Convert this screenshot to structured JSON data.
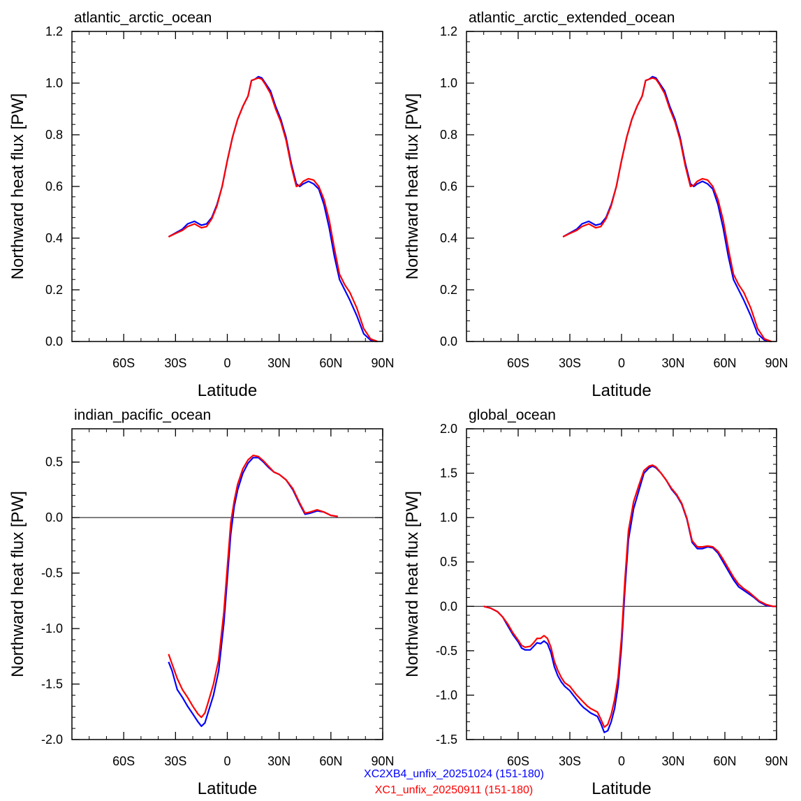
{
  "colors": {
    "series_a": "#0000ff",
    "series_b": "#ff0000",
    "axis": "#000000"
  },
  "legend": [
    {
      "label": "XC2XB4_unfix_20251024 (151-180)",
      "color": "#0000ff"
    },
    {
      "label": "XC1_unfix_20250911 (151-180)",
      "color": "#ff0000"
    }
  ],
  "chart_data": [
    {
      "type": "line",
      "title": "atlantic_arctic_ocean",
      "xlabel": "Latitude",
      "ylabel": "Northward heat flux [PW]",
      "xlim": [
        -90,
        90
      ],
      "ylim": [
        0,
        1.2
      ],
      "x_ticks": [
        -60,
        -30,
        0,
        30,
        60,
        90
      ],
      "x_tick_labels": [
        "60S",
        "30S",
        "0",
        "30N",
        "60N",
        "90N"
      ],
      "y_ticks": [
        0,
        0.2,
        0.4,
        0.6,
        0.8,
        1.0,
        1.2
      ],
      "y_tick_labels": [
        "0.0",
        "0.2",
        "0.4",
        "0.6",
        "0.8",
        "1.0",
        "1.2"
      ],
      "zero_line": false,
      "series": [
        {
          "color": "#0000ff",
          "x": [
            -34,
            -30,
            -26,
            -23,
            -19,
            -15,
            -12,
            -9,
            -6,
            -3,
            0,
            3,
            6,
            9,
            12,
            14,
            16,
            18,
            20,
            22,
            25,
            28,
            31,
            34,
            37,
            40,
            42,
            44,
            47,
            50,
            53,
            56,
            59,
            62,
            65,
            68,
            71,
            75,
            79,
            83,
            87
          ],
          "y": [
            0.405,
            0.42,
            0.435,
            0.455,
            0.465,
            0.45,
            0.455,
            0.48,
            0.53,
            0.6,
            0.7,
            0.79,
            0.86,
            0.91,
            0.95,
            1.01,
            1.015,
            1.025,
            1.02,
            1.0,
            0.97,
            0.91,
            0.86,
            0.79,
            0.69,
            0.61,
            0.6,
            0.61,
            0.62,
            0.61,
            0.59,
            0.53,
            0.44,
            0.33,
            0.24,
            0.2,
            0.16,
            0.1,
            0.03,
            0.005,
            0
          ]
        },
        {
          "color": "#ff0000",
          "x": [
            -34,
            -30,
            -26,
            -23,
            -19,
            -15,
            -12,
            -9,
            -6,
            -3,
            0,
            3,
            6,
            9,
            12,
            14,
            16,
            18,
            20,
            22,
            25,
            28,
            31,
            34,
            37,
            40,
            42,
            44,
            47,
            50,
            53,
            56,
            59,
            62,
            65,
            68,
            71,
            75,
            79,
            83,
            87
          ],
          "y": [
            0.405,
            0.418,
            0.43,
            0.445,
            0.455,
            0.44,
            0.445,
            0.475,
            0.525,
            0.6,
            0.7,
            0.79,
            0.86,
            0.91,
            0.95,
            1.01,
            1.015,
            1.02,
            1.015,
            0.995,
            0.96,
            0.9,
            0.85,
            0.78,
            0.68,
            0.6,
            0.605,
            0.62,
            0.63,
            0.625,
            0.6,
            0.55,
            0.47,
            0.36,
            0.26,
            0.22,
            0.19,
            0.13,
            0.05,
            0.01,
            0
          ]
        }
      ]
    },
    {
      "type": "line",
      "title": "atlantic_arctic_extended_ocean",
      "xlabel": "Latitude",
      "ylabel": "Northward heat flux [PW]",
      "xlim": [
        -90,
        90
      ],
      "ylim": [
        0,
        1.2
      ],
      "x_ticks": [
        -60,
        -30,
        0,
        30,
        60,
        90
      ],
      "x_tick_labels": [
        "60S",
        "30S",
        "0",
        "30N",
        "60N",
        "90N"
      ],
      "y_ticks": [
        0,
        0.2,
        0.4,
        0.6,
        0.8,
        1.0,
        1.2
      ],
      "y_tick_labels": [
        "0.0",
        "0.2",
        "0.4",
        "0.6",
        "0.8",
        "1.0",
        "1.2"
      ],
      "zero_line": false,
      "series": [
        {
          "color": "#0000ff",
          "x": [
            -34,
            -30,
            -26,
            -23,
            -19,
            -15,
            -12,
            -9,
            -6,
            -3,
            0,
            3,
            6,
            9,
            12,
            14,
            16,
            18,
            20,
            22,
            25,
            28,
            31,
            34,
            37,
            40,
            42,
            44,
            47,
            50,
            53,
            56,
            59,
            62,
            65,
            68,
            71,
            75,
            79,
            83,
            87
          ],
          "y": [
            0.405,
            0.42,
            0.435,
            0.455,
            0.465,
            0.45,
            0.455,
            0.48,
            0.53,
            0.6,
            0.7,
            0.79,
            0.86,
            0.91,
            0.95,
            1.01,
            1.015,
            1.025,
            1.02,
            1.0,
            0.97,
            0.91,
            0.86,
            0.79,
            0.69,
            0.61,
            0.6,
            0.61,
            0.62,
            0.61,
            0.59,
            0.53,
            0.44,
            0.33,
            0.24,
            0.2,
            0.16,
            0.1,
            0.03,
            0.005,
            0
          ]
        },
        {
          "color": "#ff0000",
          "x": [
            -34,
            -30,
            -26,
            -23,
            -19,
            -15,
            -12,
            -9,
            -6,
            -3,
            0,
            3,
            6,
            9,
            12,
            14,
            16,
            18,
            20,
            22,
            25,
            28,
            31,
            34,
            37,
            40,
            42,
            44,
            47,
            50,
            53,
            56,
            59,
            62,
            65,
            68,
            71,
            75,
            79,
            83,
            87
          ],
          "y": [
            0.405,
            0.418,
            0.43,
            0.445,
            0.455,
            0.44,
            0.445,
            0.475,
            0.525,
            0.6,
            0.7,
            0.79,
            0.86,
            0.91,
            0.95,
            1.01,
            1.015,
            1.02,
            1.015,
            0.995,
            0.96,
            0.9,
            0.85,
            0.78,
            0.68,
            0.6,
            0.605,
            0.62,
            0.63,
            0.625,
            0.6,
            0.55,
            0.47,
            0.36,
            0.26,
            0.22,
            0.19,
            0.13,
            0.05,
            0.01,
            0
          ]
        }
      ]
    },
    {
      "type": "line",
      "title": "indian_pacific_ocean",
      "xlabel": "Latitude",
      "ylabel": "Northward heat flux [PW]",
      "xlim": [
        -90,
        90
      ],
      "ylim": [
        -2.0,
        0.8
      ],
      "x_ticks": [
        -60,
        -30,
        0,
        30,
        60,
        90
      ],
      "x_tick_labels": [
        "60S",
        "30S",
        "0",
        "30N",
        "60N",
        "90N"
      ],
      "y_ticks": [
        -2.0,
        -1.5,
        -1.0,
        -0.5,
        0.0,
        0.5
      ],
      "y_tick_labels": [
        "-2.0",
        "-1.5",
        "-1.0",
        "-0.5",
        "0.0",
        "0.5"
      ],
      "zero_line": true,
      "series": [
        {
          "color": "#0000ff",
          "x": [
            -34,
            -32,
            -29,
            -26,
            -23,
            -20,
            -17,
            -15,
            -13,
            -11,
            -8,
            -5,
            -2,
            0,
            2,
            4,
            6,
            9,
            12,
            15,
            18,
            21,
            24,
            27,
            30,
            34,
            38,
            42,
            45,
            48,
            52,
            56,
            60,
            64
          ],
          "y": [
            -1.3,
            -1.38,
            -1.55,
            -1.62,
            -1.7,
            -1.77,
            -1.84,
            -1.88,
            -1.85,
            -1.75,
            -1.6,
            -1.38,
            -0.95,
            -0.55,
            -0.15,
            0.1,
            0.25,
            0.4,
            0.49,
            0.54,
            0.54,
            0.5,
            0.45,
            0.41,
            0.39,
            0.34,
            0.25,
            0.12,
            0.03,
            0.04,
            0.06,
            0.05,
            0.02,
            0.01
          ]
        },
        {
          "color": "#ff0000",
          "x": [
            -34,
            -32,
            -29,
            -26,
            -23,
            -20,
            -17,
            -15,
            -13,
            -11,
            -8,
            -5,
            -2,
            0,
            2,
            4,
            6,
            9,
            12,
            15,
            18,
            21,
            24,
            27,
            30,
            34,
            38,
            42,
            45,
            48,
            52,
            56,
            60,
            64
          ],
          "y": [
            -1.23,
            -1.32,
            -1.45,
            -1.55,
            -1.62,
            -1.7,
            -1.77,
            -1.8,
            -1.76,
            -1.66,
            -1.5,
            -1.28,
            -0.85,
            -0.45,
            -0.05,
            0.15,
            0.3,
            0.44,
            0.52,
            0.56,
            0.55,
            0.51,
            0.46,
            0.41,
            0.39,
            0.34,
            0.26,
            0.13,
            0.04,
            0.05,
            0.07,
            0.05,
            0.02,
            0.01
          ]
        }
      ]
    },
    {
      "type": "line",
      "title": "global_ocean",
      "xlabel": "Latitude",
      "ylabel": "Northward heat flux [PW]",
      "xlim": [
        -90,
        90
      ],
      "ylim": [
        -1.5,
        2.0
      ],
      "x_ticks": [
        -60,
        -30,
        0,
        30,
        60,
        90
      ],
      "x_tick_labels": [
        "60S",
        "30S",
        "0",
        "30N",
        "60N",
        "90N"
      ],
      "y_ticks": [
        -1.5,
        -1.0,
        -0.5,
        0.0,
        0.5,
        1.0,
        1.5,
        2.0
      ],
      "y_tick_labels": [
        "-1.5",
        "-1.0",
        "-0.5",
        "0.0",
        "0.5",
        "1.0",
        "1.5",
        "2.0"
      ],
      "zero_line": true,
      "series": [
        {
          "color": "#0000ff",
          "x": [
            -80,
            -76,
            -72,
            -69,
            -66,
            -63,
            -60,
            -58,
            -56,
            -53,
            -51,
            -49,
            -47,
            -45,
            -43,
            -41,
            -39,
            -37,
            -35,
            -33,
            -30,
            -28,
            -26,
            -24,
            -22,
            -20,
            -18,
            -16,
            -14,
            -12,
            -10,
            -8,
            -6,
            -4,
            -2,
            0,
            2,
            4,
            7,
            10,
            13,
            16,
            18,
            20,
            23,
            26,
            29,
            32,
            35,
            38,
            41,
            44,
            47,
            50,
            53,
            56,
            59,
            62,
            65,
            68,
            71,
            74,
            77,
            80,
            84,
            88,
            90
          ],
          "y": [
            0,
            -0.02,
            -0.06,
            -0.12,
            -0.22,
            -0.32,
            -0.4,
            -0.47,
            -0.49,
            -0.49,
            -0.45,
            -0.41,
            -0.42,
            -0.39,
            -0.42,
            -0.52,
            -0.68,
            -0.78,
            -0.85,
            -0.9,
            -0.95,
            -1.0,
            -1.05,
            -1.1,
            -1.14,
            -1.17,
            -1.2,
            -1.22,
            -1.24,
            -1.32,
            -1.42,
            -1.4,
            -1.3,
            -1.15,
            -0.9,
            -0.45,
            0.2,
            0.75,
            1.1,
            1.3,
            1.5,
            1.56,
            1.58,
            1.56,
            1.5,
            1.42,
            1.32,
            1.25,
            1.15,
            0.98,
            0.72,
            0.65,
            0.65,
            0.67,
            0.66,
            0.6,
            0.5,
            0.4,
            0.3,
            0.22,
            0.18,
            0.14,
            0.1,
            0.05,
            0.01,
            0,
            0
          ]
        },
        {
          "color": "#ff0000",
          "x": [
            -80,
            -76,
            -72,
            -69,
            -66,
            -63,
            -60,
            -58,
            -56,
            -53,
            -51,
            -49,
            -47,
            -45,
            -43,
            -41,
            -39,
            -37,
            -35,
            -33,
            -30,
            -28,
            -26,
            -24,
            -22,
            -20,
            -18,
            -16,
            -14,
            -12,
            -10,
            -8,
            -6,
            -4,
            -2,
            0,
            2,
            4,
            7,
            10,
            13,
            16,
            18,
            20,
            23,
            26,
            29,
            32,
            35,
            38,
            41,
            44,
            47,
            50,
            53,
            56,
            59,
            62,
            65,
            68,
            71,
            74,
            77,
            80,
            84,
            88,
            90
          ],
          "y": [
            0,
            -0.02,
            -0.06,
            -0.12,
            -0.2,
            -0.3,
            -0.38,
            -0.44,
            -0.46,
            -0.45,
            -0.41,
            -0.36,
            -0.36,
            -0.33,
            -0.36,
            -0.46,
            -0.62,
            -0.72,
            -0.8,
            -0.86,
            -0.9,
            -0.95,
            -1.0,
            -1.04,
            -1.08,
            -1.12,
            -1.15,
            -1.17,
            -1.19,
            -1.27,
            -1.36,
            -1.33,
            -1.22,
            -1.05,
            -0.8,
            -0.35,
            0.3,
            0.85,
            1.18,
            1.36,
            1.53,
            1.58,
            1.59,
            1.57,
            1.5,
            1.42,
            1.33,
            1.26,
            1.16,
            0.99,
            0.74,
            0.67,
            0.67,
            0.68,
            0.67,
            0.62,
            0.53,
            0.43,
            0.33,
            0.25,
            0.2,
            0.16,
            0.11,
            0.06,
            0.02,
            0,
            0
          ]
        }
      ]
    }
  ]
}
